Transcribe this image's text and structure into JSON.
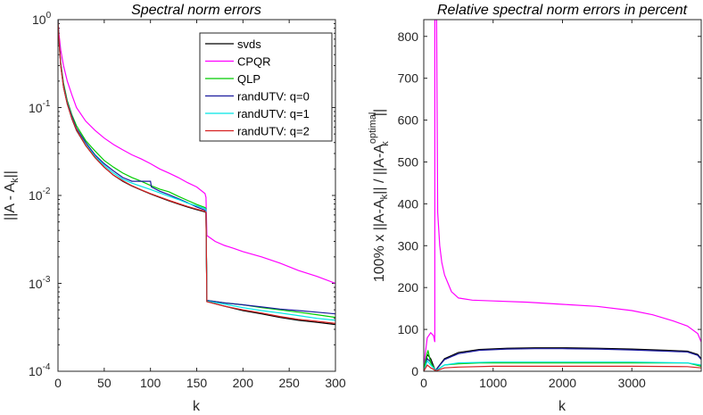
{
  "chart_data": [
    {
      "type": "line",
      "title": "Spectral norm errors",
      "xlabel": "k",
      "ylabel": "||A - A_k||",
      "yscale": "log",
      "xlim": [
        0,
        300
      ],
      "ylim": [
        0.0001,
        1
      ],
      "xticks": [
        0,
        50,
        100,
        150,
        200,
        250,
        300
      ],
      "xtick_labels": [
        "0",
        "50",
        "100",
        "150",
        "200",
        "250",
        "300"
      ],
      "yticks": [
        0.0001,
        0.001,
        0.01,
        0.1,
        1
      ],
      "legend_position": "top-right",
      "series": [
        {
          "name": "svds",
          "color": "#000000",
          "x": [
            0,
            1,
            3,
            6,
            10,
            15,
            20,
            30,
            40,
            50,
            60,
            70,
            80,
            90,
            100,
            110,
            120,
            130,
            140,
            150,
            159,
            160,
            161,
            180,
            200,
            220,
            240,
            260,
            280,
            300
          ],
          "y": [
            1,
            0.6,
            0.3,
            0.17,
            0.11,
            0.075,
            0.055,
            0.037,
            0.027,
            0.021,
            0.017,
            0.0145,
            0.0128,
            0.0115,
            0.0104,
            0.0095,
            0.0087,
            0.008,
            0.0074,
            0.0069,
            0.0065,
            0.0063,
            0.00062,
            0.00055,
            0.00049,
            0.00045,
            0.00041,
            0.00038,
            0.00036,
            0.00034
          ]
        },
        {
          "name": "CPQR",
          "color": "#ff00ff",
          "x": [
            0,
            1,
            3,
            6,
            10,
            15,
            20,
            30,
            40,
            50,
            60,
            70,
            80,
            90,
            100,
            110,
            120,
            130,
            140,
            150,
            159,
            160,
            161,
            170,
            180,
            190,
            200,
            220,
            240,
            260,
            280,
            300
          ],
          "y": [
            1,
            0.7,
            0.45,
            0.3,
            0.2,
            0.14,
            0.1,
            0.07,
            0.055,
            0.045,
            0.038,
            0.033,
            0.029,
            0.026,
            0.023,
            0.02,
            0.018,
            0.016,
            0.014,
            0.0125,
            0.0105,
            0.0095,
            0.0035,
            0.003,
            0.0027,
            0.0025,
            0.0023,
            0.002,
            0.0017,
            0.0014,
            0.0012,
            0.001
          ]
        },
        {
          "name": "QLP",
          "color": "#00cc00",
          "x": [
            0,
            1,
            3,
            6,
            10,
            15,
            20,
            30,
            40,
            50,
            60,
            70,
            80,
            90,
            100,
            110,
            120,
            130,
            140,
            150,
            159,
            160,
            161,
            180,
            200,
            220,
            240,
            260,
            280,
            300
          ],
          "y": [
            1,
            0.6,
            0.32,
            0.19,
            0.12,
            0.083,
            0.062,
            0.042,
            0.032,
            0.025,
            0.021,
            0.018,
            0.016,
            0.0145,
            0.013,
            0.0118,
            0.011,
            0.0098,
            0.0088,
            0.0079,
            0.0073,
            0.0071,
            0.00064,
            0.0006,
            0.00057,
            0.00053,
            0.0005,
            0.00047,
            0.00044,
            0.00041
          ]
        },
        {
          "name": "randUTV: q=0",
          "color": "#1a1a9e",
          "x": [
            0,
            1,
            3,
            6,
            10,
            15,
            20,
            30,
            40,
            50,
            60,
            70,
            80,
            90,
            100,
            101,
            110,
            120,
            130,
            140,
            150,
            159,
            160,
            161,
            180,
            200,
            220,
            240,
            260,
            280,
            300
          ],
          "y": [
            1,
            0.6,
            0.31,
            0.18,
            0.115,
            0.08,
            0.058,
            0.04,
            0.029,
            0.023,
            0.019,
            0.016,
            0.0145,
            0.0145,
            0.0145,
            0.0125,
            0.0112,
            0.0102,
            0.0092,
            0.0083,
            0.0074,
            0.0068,
            0.0066,
            0.00064,
            0.0006,
            0.00057,
            0.00054,
            0.00051,
            0.00049,
            0.00047,
            0.00045
          ]
        },
        {
          "name": "randUTV: q=1",
          "color": "#00e5e5",
          "x": [
            0,
            1,
            3,
            6,
            10,
            15,
            20,
            30,
            40,
            50,
            60,
            70,
            80,
            90,
            100,
            110,
            120,
            130,
            140,
            150,
            159,
            160,
            161,
            180,
            200,
            220,
            240,
            260,
            280,
            300
          ],
          "y": [
            1,
            0.6,
            0.3,
            0.175,
            0.112,
            0.077,
            0.056,
            0.038,
            0.028,
            0.022,
            0.018,
            0.0153,
            0.0138,
            0.0127,
            0.0117,
            0.0107,
            0.0098,
            0.009,
            0.0082,
            0.0076,
            0.0071,
            0.0069,
            0.00063,
            0.00058,
            0.00053,
            0.00049,
            0.00046,
            0.00043,
            0.0004,
            0.00038
          ]
        },
        {
          "name": "randUTV: q=2",
          "color": "#d62020",
          "x": [
            0,
            1,
            3,
            6,
            10,
            15,
            20,
            30,
            40,
            50,
            60,
            70,
            80,
            90,
            100,
            110,
            120,
            130,
            140,
            150,
            159,
            160,
            161,
            180,
            200,
            220,
            240,
            260,
            280,
            300
          ],
          "y": [
            1,
            0.6,
            0.3,
            0.172,
            0.11,
            0.076,
            0.056,
            0.037,
            0.027,
            0.021,
            0.017,
            0.0147,
            0.0129,
            0.0116,
            0.0105,
            0.0096,
            0.0088,
            0.0081,
            0.0075,
            0.007,
            0.0066,
            0.0064,
            0.00062,
            0.00055,
            0.0005,
            0.00046,
            0.00042,
            0.00039,
            0.00037,
            0.00035
          ]
        }
      ]
    },
    {
      "type": "line",
      "title": "Relative spectral norm errors in percent",
      "xlabel": "k",
      "ylabel": "100% x ||A-A_k|| / ||A-A_k^optimal||",
      "xlim": [
        0,
        4000
      ],
      "ylim": [
        0,
        840
      ],
      "xticks": [
        0,
        1000,
        2000,
        3000
      ],
      "xtick_labels": [
        "0",
        "1000",
        "2000",
        "3000"
      ],
      "yticks": [
        0,
        100,
        200,
        300,
        400,
        500,
        600,
        700,
        800
      ],
      "series": [
        {
          "name": "CPQR",
          "color": "#ff00ff",
          "x": [
            0,
            20,
            50,
            100,
            140,
            159,
            160,
            165,
            175,
            185,
            200,
            230,
            260,
            300,
            350,
            400,
            500,
            700,
            1000,
            1500,
            2000,
            2500,
            3000,
            3300,
            3600,
            3800,
            3950,
            4000
          ],
          "y": [
            0,
            40,
            80,
            92,
            85,
            70,
            840,
            840,
            840,
            840,
            380,
            300,
            260,
            230,
            210,
            190,
            175,
            170,
            168,
            165,
            160,
            155,
            145,
            135,
            120,
            108,
            90,
            70
          ]
        },
        {
          "name": "svds",
          "color": "#000000",
          "x": [
            0,
            50,
            100,
            159,
            160,
            300,
            500,
            800,
            1200,
            1600,
            2000,
            2500,
            3000,
            3500,
            3800,
            3950,
            4000
          ],
          "y": [
            0,
            40,
            30,
            5,
            0,
            30,
            45,
            52,
            55,
            56,
            56,
            55,
            53,
            50,
            48,
            40,
            30
          ]
        },
        {
          "name": "randUTV: q=0",
          "color": "#1a1a9e",
          "x": [
            0,
            50,
            100,
            159,
            160,
            300,
            500,
            800,
            1200,
            1600,
            2000,
            2500,
            3000,
            3500,
            3800,
            3950,
            4000
          ],
          "y": [
            0,
            30,
            22,
            5,
            0,
            28,
            42,
            50,
            53,
            54,
            54,
            53,
            51,
            48,
            46,
            38,
            28
          ]
        },
        {
          "name": "QLP",
          "color": "#00cc00",
          "x": [
            0,
            30,
            60,
            100,
            159,
            160,
            300,
            500,
            800,
            1200,
            2000,
            3000,
            3800,
            4000
          ],
          "y": [
            0,
            30,
            50,
            20,
            5,
            0,
            15,
            18,
            20,
            20,
            20,
            20,
            20,
            12
          ]
        },
        {
          "name": "randUTV: q=1",
          "color": "#00e5e5",
          "x": [
            0,
            50,
            100,
            159,
            160,
            300,
            500,
            1000,
            2000,
            3000,
            3800,
            4000
          ],
          "y": [
            0,
            25,
            15,
            5,
            0,
            15,
            20,
            22,
            22,
            22,
            20,
            15
          ]
        },
        {
          "name": "randUTV: q=2",
          "color": "#d62020",
          "x": [
            0,
            50,
            100,
            159,
            160,
            300,
            500,
            1000,
            2000,
            3000,
            3800,
            4000
          ],
          "y": [
            0,
            15,
            8,
            3,
            0,
            8,
            10,
            12,
            12,
            12,
            11,
            8
          ]
        }
      ]
    }
  ],
  "axis_text": {
    "left_title": "Spectral norm errors",
    "right_title": "Relative spectral norm errors in percent",
    "left_xlabel": "k",
    "right_xlabel": "k",
    "left_ylabel": "||A - A",
    "left_ylabel_sub": "k",
    "left_ylabel_end": "||",
    "right_ylabel_a": "100% x ||A-A",
    "right_ylabel_sub1": "k",
    "right_ylabel_b": "|| / ||A-A",
    "right_ylabel_sup": "optimal",
    "right_ylabel_sub2": "k",
    "right_ylabel_c": "||",
    "log_ticks": {
      "t0": "10",
      "t0_exp": "-4",
      "t1": "10",
      "t1_exp": "-3",
      "t2": "10",
      "t2_exp": "-2",
      "t3": "10",
      "t3_exp": "-1",
      "t4": "10",
      "t4_exp": "0"
    }
  }
}
